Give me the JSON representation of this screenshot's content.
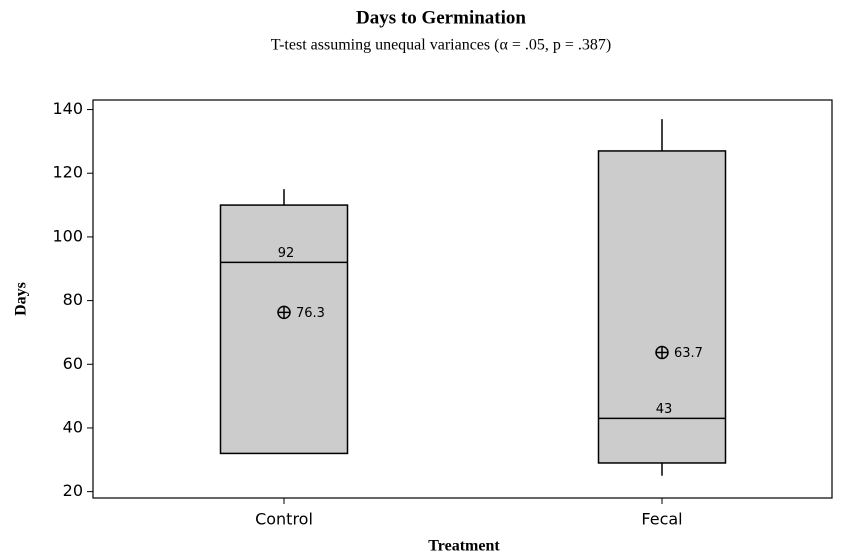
{
  "chart_data": {
    "type": "box",
    "title": "Days to Germination",
    "subtitle": "T-test assuming unequal variances (α = .05, p = .387)",
    "x_label": "Treatment",
    "y_label": "Days",
    "categories": [
      "Control",
      "Fecal"
    ],
    "color": "#cccccc",
    "q1": [
      32,
      29
    ],
    "median": [
      92,
      43
    ],
    "q3": [
      110,
      127
    ],
    "whisker_low": [
      32,
      25
    ],
    "whisker_high": [
      115,
      137
    ],
    "mean": [
      76.3,
      63.7
    ],
    "ylim": [
      18,
      143
    ],
    "yticks": [
      20,
      40,
      60,
      80,
      100,
      120,
      140
    ]
  }
}
